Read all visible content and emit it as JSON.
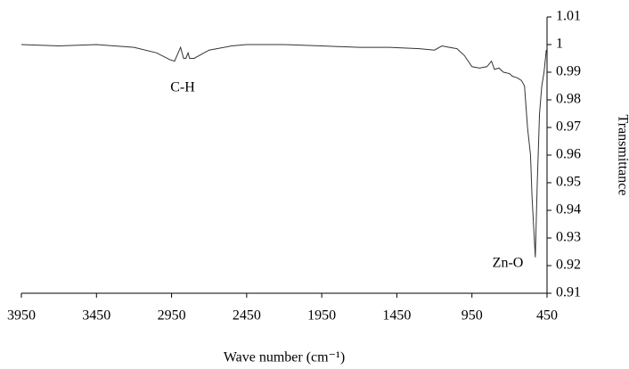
{
  "chart_data": {
    "type": "line",
    "xlabel": "Wave number (cm⁻¹)",
    "ylabel": "Transmittance",
    "annotations": [
      "C-H",
      "Zn-O"
    ],
    "xlim": [
      3950,
      450
    ],
    "xticks": [
      3950,
      3450,
      2950,
      2450,
      1950,
      1450,
      950,
      450
    ],
    "ylim": [
      0.91,
      1.01
    ],
    "yticks": [
      0.91,
      0.92,
      0.93,
      0.94,
      0.95,
      0.96,
      0.97,
      0.98,
      0.99,
      1,
      1.01
    ],
    "grid": false,
    "color": "#333333",
    "x": [
      3950,
      3700,
      3450,
      3200,
      3050,
      2960,
      2930,
      2890,
      2870,
      2855,
      2840,
      2830,
      2800,
      2700,
      2550,
      2450,
      2200,
      1950,
      1700,
      1500,
      1300,
      1200,
      1150,
      1100,
      1050,
      1000,
      950,
      900,
      850,
      820,
      800,
      770,
      740,
      700,
      680,
      650,
      620,
      600,
      580,
      560,
      550,
      540,
      528,
      515,
      500,
      485,
      470,
      455
    ],
    "values": [
      1.0,
      0.9995,
      1.0,
      0.999,
      0.997,
      0.9945,
      0.994,
      0.999,
      0.995,
      0.995,
      0.997,
      0.995,
      0.995,
      0.998,
      0.9995,
      1.0,
      1.0,
      0.9995,
      0.999,
      0.999,
      0.9985,
      0.998,
      0.9995,
      0.999,
      0.9985,
      0.996,
      0.992,
      0.9915,
      0.992,
      0.994,
      0.991,
      0.9915,
      0.99,
      0.9895,
      0.9885,
      0.988,
      0.987,
      0.985,
      0.97,
      0.96,
      0.945,
      0.935,
      0.923,
      0.95,
      0.975,
      0.985,
      0.99,
      0.998
    ]
  }
}
